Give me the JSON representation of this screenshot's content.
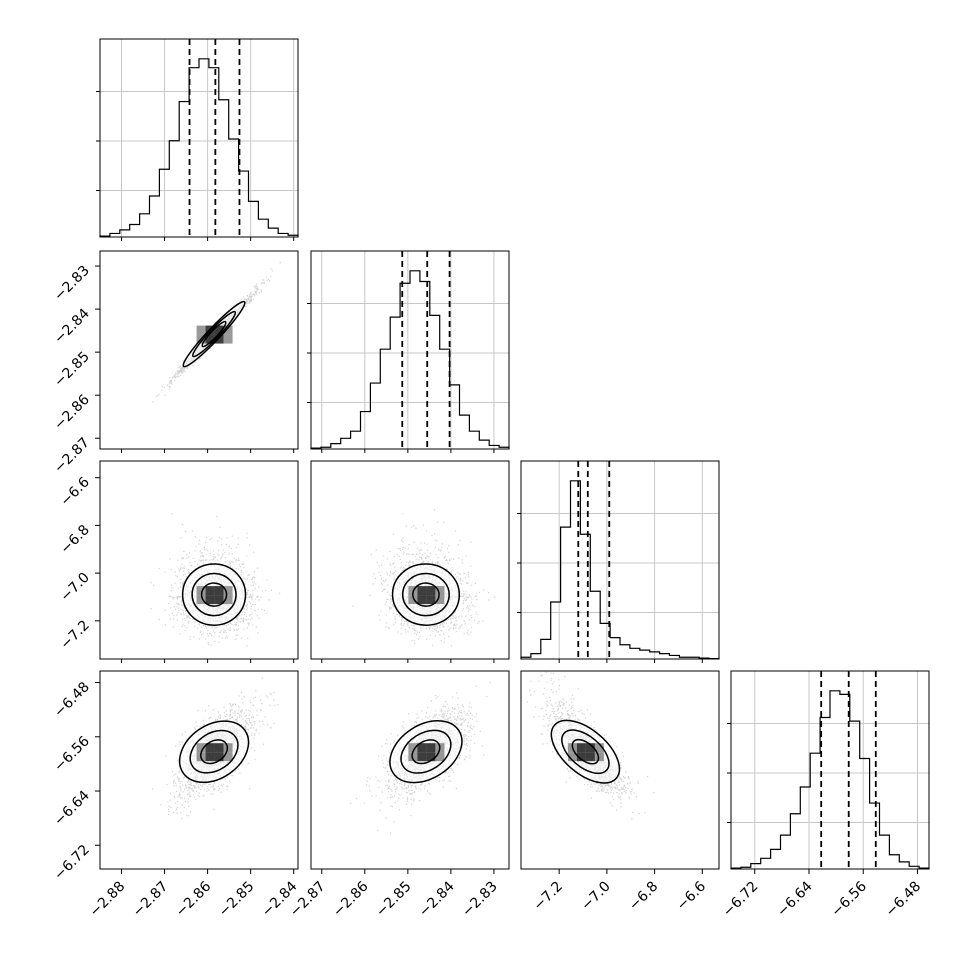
{
  "chart_data": {
    "type": "corner",
    "grid": true,
    "parameters": [
      {
        "range": [
          -2.885,
          -2.839
        ],
        "ticks": [
          -2.88,
          -2.87,
          -2.86,
          -2.85,
          -2.84
        ],
        "tick_labels": [
          "−2.88",
          "−2.87",
          "−2.86",
          "−2.85",
          "−2.84"
        ],
        "quantiles": [
          -2.8642,
          -2.8582,
          -2.8526
        ]
      },
      {
        "range": [
          -2.8725,
          -2.8265
        ],
        "ticks": [
          -2.87,
          -2.86,
          -2.85,
          -2.84,
          -2.83
        ],
        "tick_labels": [
          "−2.87",
          "−2.86",
          "−2.85",
          "−2.84",
          "−2.83"
        ],
        "quantiles": [
          -2.8513,
          -2.8455,
          -2.8403
        ]
      },
      {
        "range": [
          -7.36,
          -6.53
        ],
        "ticks": [
          -7.2,
          -7.0,
          -6.8,
          -6.6
        ],
        "tick_labels": [
          "−7.2",
          "−7.0",
          "−6.8",
          "−6.6"
        ],
        "quantiles": [
          -7.12,
          -7.08,
          -6.99
        ]
      },
      {
        "range": [
          -6.755,
          -6.463
        ],
        "ticks": [
          -6.72,
          -6.64,
          -6.56,
          -6.48
        ],
        "tick_labels": [
          "−6.72",
          "−6.64",
          "−6.56",
          "−6.48"
        ],
        "quantiles": [
          -6.622,
          -6.5814,
          -6.5415
        ]
      }
    ],
    "histograms": [
      [
        0.005,
        0.02,
        0.04,
        0.07,
        0.13,
        0.23,
        0.38,
        0.54,
        0.76,
        0.95,
        1.0,
        0.95,
        0.77,
        0.55,
        0.37,
        0.2,
        0.1,
        0.05,
        0.02,
        0.01
      ],
      [
        0.005,
        0.01,
        0.03,
        0.06,
        0.1,
        0.21,
        0.37,
        0.56,
        0.74,
        0.93,
        1.0,
        0.94,
        0.75,
        0.56,
        0.36,
        0.19,
        0.1,
        0.05,
        0.02,
        0.01
      ],
      [
        0.01,
        0.03,
        0.11,
        0.32,
        0.74,
        1.0,
        0.7,
        0.38,
        0.2,
        0.12,
        0.08,
        0.06,
        0.05,
        0.04,
        0.03,
        0.02,
        0.01,
        0.01,
        0.005,
        0.002
      ],
      [
        0.005,
        0.01,
        0.03,
        0.06,
        0.11,
        0.19,
        0.31,
        0.46,
        0.65,
        0.85,
        1.0,
        0.98,
        0.83,
        0.62,
        0.37,
        0.19,
        0.08,
        0.04,
        0.015,
        0.005
      ]
    ],
    "pairs": [
      {
        "x": 0,
        "y": 1,
        "mean": [
          -2.8585,
          -2.8458
        ],
        "sd": [
          0.0044,
          0.0047
        ],
        "corr": 0.99,
        "skew": 0
      },
      {
        "x": 0,
        "y": 2,
        "mean": [
          -2.8585,
          -7.09
        ],
        "sd": [
          0.0044,
          0.08
        ],
        "corr": -0.05,
        "skew": 0.6
      },
      {
        "x": 1,
        "y": 2,
        "mean": [
          -2.8458,
          -7.09
        ],
        "sd": [
          0.0047,
          0.08
        ],
        "corr": -0.05,
        "skew": 0.6
      },
      {
        "x": 0,
        "y": 3,
        "mean": [
          -2.8585,
          -6.582
        ],
        "sd": [
          0.0044,
          0.031
        ],
        "corr": 0.62,
        "skew": 0
      },
      {
        "x": 1,
        "y": 3,
        "mean": [
          -2.8458,
          -6.582
        ],
        "sd": [
          0.0047,
          0.031
        ],
        "corr": 0.62,
        "skew": 0
      },
      {
        "x": 2,
        "y": 3,
        "mean": [
          -7.09,
          -6.582
        ],
        "sd": [
          0.08,
          0.031
        ],
        "corr": -0.78,
        "skew": 0.6
      }
    ]
  }
}
